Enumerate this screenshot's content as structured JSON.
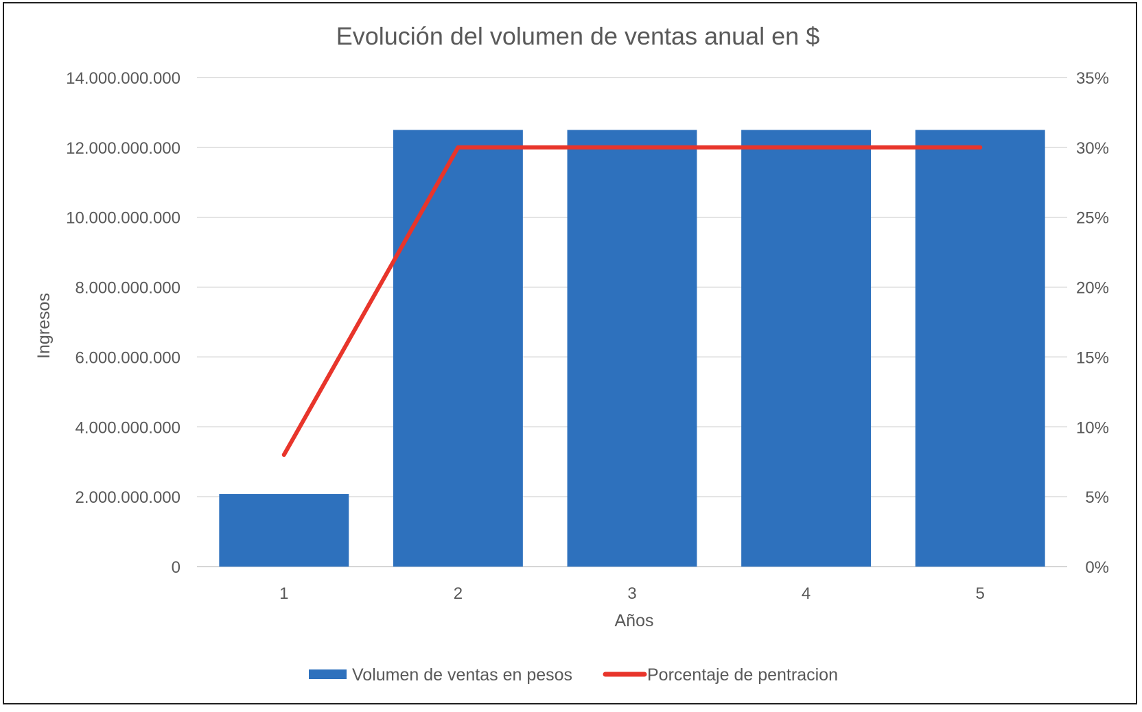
{
  "chart_data": {
    "type": "bar",
    "title": "Evolución del volumen de ventas anual en $",
    "xlabel": "Años",
    "ylabel": "Ingresos",
    "categories": [
      "1",
      "2",
      "3",
      "4",
      "5"
    ],
    "y_ticks": [
      "0",
      "2.000.000.000",
      "4.000.000.000",
      "6.000.000.000",
      "8.000.000.000",
      "10.000.000.000",
      "12.000.000.000",
      "14.000.000.000"
    ],
    "y2_ticks": [
      "0%",
      "5%",
      "10%",
      "15%",
      "20%",
      "25%",
      "30%",
      "35%"
    ],
    "ylim": [
      0,
      14000000000
    ],
    "y2lim": [
      0,
      0.35
    ],
    "grid": true,
    "legend_position": "bottom",
    "series": [
      {
        "name": "Volumen de ventas en pesos",
        "type": "bar",
        "axis": "primary",
        "color": "#2e71bd",
        "values": [
          2080000000,
          12500000000,
          12500000000,
          12500000000,
          12500000000
        ]
      },
      {
        "name": "Porcentaje de pentracion",
        "type": "line",
        "axis": "secondary",
        "color": "#e8352b",
        "values": [
          0.08,
          0.3,
          0.3,
          0.3,
          0.3
        ]
      }
    ]
  }
}
